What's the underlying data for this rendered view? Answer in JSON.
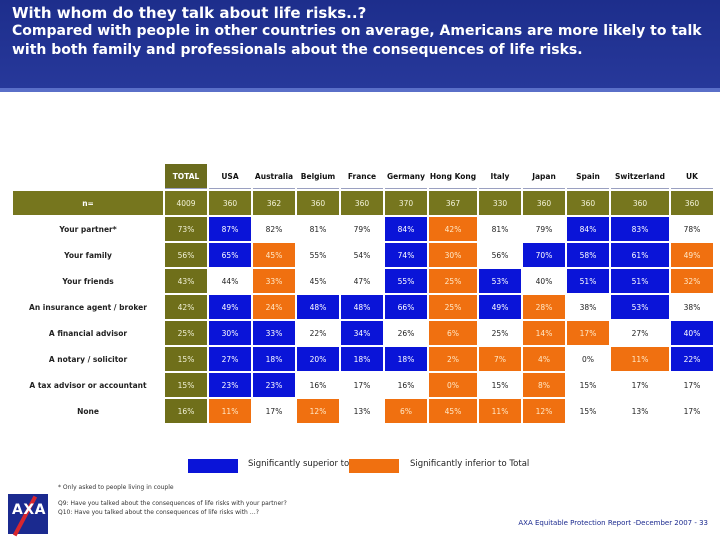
{
  "header": {
    "title": "With whom do they talk about life risks..?",
    "subtitle": "Compared with people in other countries on average, Americans are more likely to talk with both family and professionals about the consequences of life risks."
  },
  "table": {
    "columns": [
      "TOTAL",
      "USA",
      "Australia",
      "Belgium",
      "France",
      "Germany",
      "Hong Kong",
      "Italy",
      "Japan",
      "Spain",
      "Switzerland",
      "UK"
    ],
    "rows": [
      {
        "label": "n=",
        "values": [
          "4009",
          "360",
          "362",
          "360",
          "360",
          "370",
          "367",
          "330",
          "360",
          "360",
          "360",
          "360"
        ],
        "sig": [
          "base",
          "base",
          "base",
          "base",
          "base",
          "base",
          "base",
          "base",
          "base",
          "base",
          "base",
          "base"
        ]
      },
      {
        "label": "Your partner*",
        "values": [
          "73%",
          "87%",
          "82%",
          "81%",
          "79%",
          "84%",
          "42%",
          "81%",
          "79%",
          "84%",
          "83%",
          "78%"
        ],
        "sig": [
          "t",
          "up",
          "",
          "",
          "",
          "up",
          "down",
          "",
          "",
          "up",
          "up",
          ""
        ]
      },
      {
        "label": "Your family",
        "values": [
          "56%",
          "65%",
          "45%",
          "55%",
          "54%",
          "74%",
          "30%",
          "56%",
          "70%",
          "58%",
          "61%",
          "49%"
        ],
        "sig": [
          "t",
          "up",
          "down",
          "",
          "",
          "up",
          "down",
          "",
          "up",
          "up",
          "up",
          "down"
        ]
      },
      {
        "label": "Your friends",
        "values": [
          "43%",
          "44%",
          "33%",
          "45%",
          "47%",
          "55%",
          "25%",
          "53%",
          "40%",
          "51%",
          "51%",
          "32%"
        ],
        "sig": [
          "t",
          "",
          "down",
          "",
          "",
          "up",
          "down",
          "up",
          "",
          "up",
          "up",
          "down"
        ]
      },
      {
        "label": "An insurance agent / broker",
        "values": [
          "42%",
          "49%",
          "24%",
          "48%",
          "48%",
          "66%",
          "25%",
          "49%",
          "28%",
          "38%",
          "53%",
          "38%"
        ],
        "sig": [
          "t",
          "up",
          "down",
          "up",
          "up",
          "up",
          "down",
          "up",
          "down",
          "",
          "up",
          ""
        ]
      },
      {
        "label": "A financial advisor",
        "values": [
          "25%",
          "30%",
          "33%",
          "22%",
          "34%",
          "26%",
          "6%",
          "25%",
          "14%",
          "17%",
          "27%",
          "40%"
        ],
        "sig": [
          "t",
          "up",
          "up",
          "",
          "up",
          "",
          "down",
          "",
          "down",
          "down",
          "",
          "up"
        ]
      },
      {
        "label": "A notary / solicitor",
        "values": [
          "15%",
          "27%",
          "18%",
          "20%",
          "18%",
          "18%",
          "2%",
          "7%",
          "4%",
          "0%",
          "11%",
          "22%"
        ],
        "sig": [
          "t",
          "up",
          "up",
          "up",
          "up",
          "up",
          "down",
          "down",
          "down",
          "",
          "down",
          "up"
        ]
      },
      {
        "label": "A tax advisor or accountant",
        "values": [
          "15%",
          "23%",
          "23%",
          "16%",
          "17%",
          "16%",
          "0%",
          "15%",
          "8%",
          "15%",
          "17%",
          "17%"
        ],
        "sig": [
          "t",
          "up",
          "up",
          "",
          "",
          "",
          "down",
          "",
          "down",
          "",
          "",
          ""
        ]
      },
      {
        "label": "None",
        "values": [
          "16%",
          "11%",
          "17%",
          "12%",
          "13%",
          "6%",
          "45%",
          "11%",
          "12%",
          "15%",
          "13%",
          "17%"
        ],
        "sig": [
          "t",
          "down",
          "",
          "down",
          "",
          "down",
          "down",
          "down",
          "down",
          "",
          "",
          ""
        ]
      }
    ]
  },
  "legend": {
    "superior": "Significantly superior to Total",
    "inferior": "Significantly inferior to Total",
    "superior_color": "#0a14d8",
    "inferior_color": "#f07010"
  },
  "footnotes": {
    "asterisk": "* Only asked to people living in couple",
    "q9": "Q9: Have you talked about the consequences of life risks with your partner?",
    "q10": "Q10: Have you talked about the consequences of life risks with …?"
  },
  "logo": {
    "text": "AXA"
  },
  "footer": "AXA Equitable Protection Report -December  2007 - 33"
}
